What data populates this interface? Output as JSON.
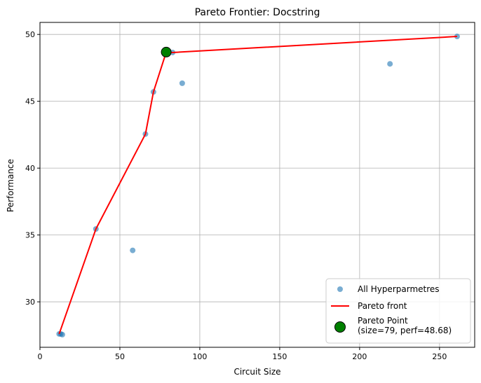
{
  "chart_data": {
    "type": "scatter",
    "title": "Pareto Frontier: Docstring",
    "xlabel": "Circuit Size",
    "ylabel": "Performance",
    "xlim": [
      0,
      272
    ],
    "ylim": [
      26.6,
      50.9
    ],
    "x_ticks": [
      0,
      50,
      100,
      150,
      200,
      250
    ],
    "y_ticks": [
      30,
      35,
      40,
      45,
      50
    ],
    "grid": true,
    "legend_position": "lower-right",
    "series": [
      {
        "name": "All Hyperparmetres",
        "kind": "scatter",
        "color": "#1f77b4",
        "points": [
          {
            "x": 12,
            "y": 27.6
          },
          {
            "x": 13,
            "y": 27.6
          },
          {
            "x": 14,
            "y": 27.55
          },
          {
            "x": 35,
            "y": 35.45
          },
          {
            "x": 58,
            "y": 33.85
          },
          {
            "x": 66,
            "y": 42.55
          },
          {
            "x": 71,
            "y": 45.7
          },
          {
            "x": 79,
            "y": 48.68
          },
          {
            "x": 83,
            "y": 48.65
          },
          {
            "x": 89,
            "y": 46.35
          },
          {
            "x": 219,
            "y": 47.8
          },
          {
            "x": 261,
            "y": 49.85
          }
        ]
      },
      {
        "name": "Pareto front",
        "kind": "line",
        "color": "#ff0000",
        "points": [
          {
            "x": 12,
            "y": 27.6
          },
          {
            "x": 35,
            "y": 35.45
          },
          {
            "x": 66,
            "y": 42.55
          },
          {
            "x": 71,
            "y": 45.7
          },
          {
            "x": 79,
            "y": 48.68
          },
          {
            "x": 83,
            "y": 48.65
          },
          {
            "x": 261,
            "y": 49.85
          }
        ]
      },
      {
        "name": "Pareto Point\n(size=79, perf=48.68)",
        "kind": "highlight",
        "color": "#008000",
        "points": [
          {
            "x": 79,
            "y": 48.68
          }
        ]
      }
    ]
  }
}
